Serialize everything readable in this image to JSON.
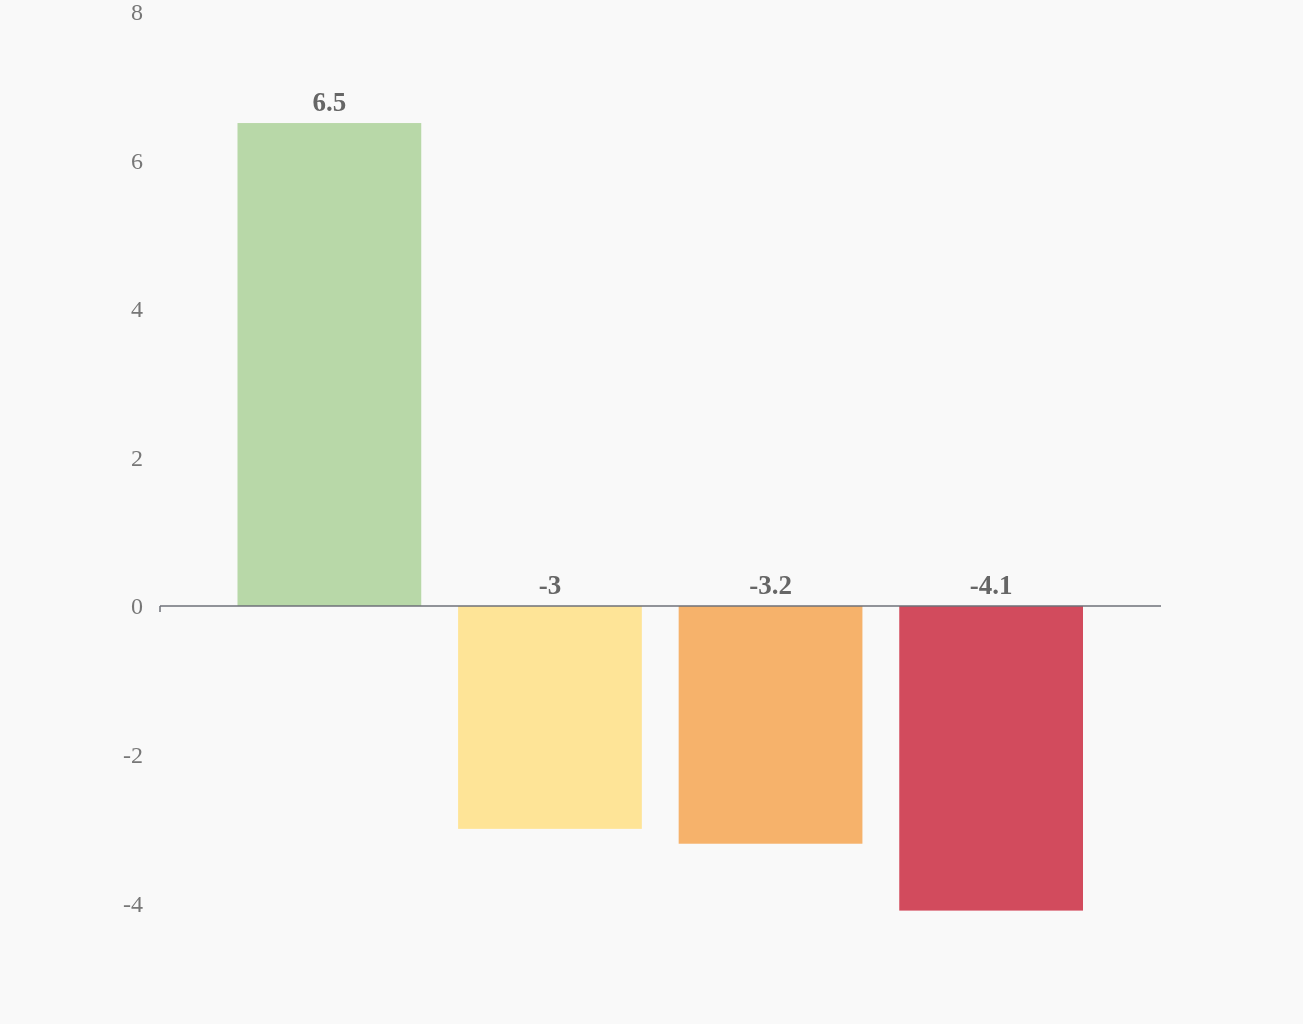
{
  "chart_data": {
    "type": "bar",
    "categories": [
      null,
      null,
      null,
      null
    ],
    "values": [
      6.5,
      -3,
      -3.2,
      -4.1
    ],
    "colors": [
      "#b8d8a8",
      "#fee497",
      "#f6b26b",
      "#d24b5d"
    ],
    "ylim": [
      -4.1,
      8
    ],
    "yticks": [
      -4,
      -2,
      0,
      2,
      4,
      6,
      8
    ],
    "data_labels": true
  }
}
